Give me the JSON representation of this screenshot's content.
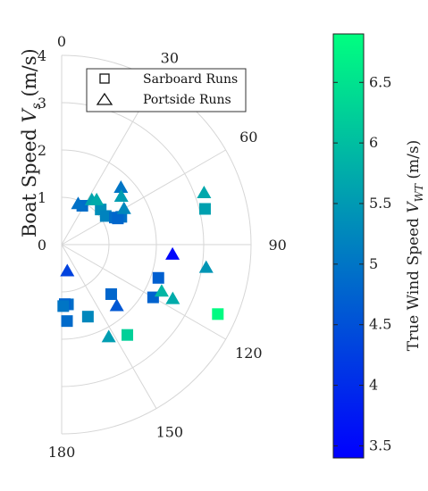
{
  "chart_data": {
    "type": "scatter",
    "coordinate_system": "polar-half",
    "ylabel": "Boat Speed V_s (m/s)",
    "ylabel_parts": {
      "main": "Boat Speed ",
      "var": "V",
      "sub": "s",
      "unit": " (m/s)"
    },
    "radial_range": [
      0,
      4
    ],
    "radial_ticks": [
      0,
      1,
      2,
      3,
      4
    ],
    "radial_tick_labels": [
      "0",
      "1",
      "2",
      "3",
      "4"
    ],
    "angle_range": [
      0,
      180
    ],
    "angle_ticks": [
      0,
      30,
      60,
      90,
      120,
      150,
      180
    ],
    "angle_tick_labels": [
      "0",
      "30",
      "60",
      "90",
      "120",
      "150",
      "180"
    ],
    "grid": true,
    "legend": {
      "placement": "top-center",
      "entries": [
        {
          "label": "Sarboard Runs",
          "marker": "square"
        },
        {
          "label": "Portside Runs",
          "marker": "triangle"
        }
      ]
    },
    "colorbar": {
      "label": "True Wind Speed V_WT (m/s)",
      "label_parts": {
        "main": "True Wind Speed ",
        "var": "V",
        "sub": "WT",
        "unit": " (m/s)"
      },
      "range": [
        3.4,
        6.9
      ],
      "ticks": [
        3.5,
        4,
        4.5,
        5,
        5.5,
        6,
        6.5
      ],
      "tick_labels": [
        "3.5",
        "4",
        "4.5",
        "5",
        "5.5",
        "6",
        "6.5"
      ],
      "colormap": [
        "#0000ff",
        "#00ff80"
      ]
    },
    "series": [
      {
        "name": "Sarboard Runs",
        "marker": "square",
        "points": [
          {
            "angle": 28,
            "r": 0.93,
            "c": 4.9
          },
          {
            "angle": 48,
            "r": 1.11,
            "c": 5.35
          },
          {
            "angle": 57,
            "r": 1.11,
            "c": 5.2
          },
          {
            "angle": 63,
            "r": 1.26,
            "c": 4.9
          },
          {
            "angle": 65,
            "r": 1.39,
            "c": 4.95
          },
          {
            "angle": 65,
            "r": 1.31,
            "c": 4.8
          },
          {
            "angle": 76,
            "r": 3.12,
            "c": 5.6
          },
          {
            "angle": 109,
            "r": 2.16,
            "c": 4.7
          },
          {
            "angle": 120,
            "r": 2.23,
            "c": 4.75
          },
          {
            "angle": 114,
            "r": 3.61,
            "c": 6.85
          },
          {
            "angle": 135,
            "r": 1.48,
            "c": 4.8
          },
          {
            "angle": 144,
            "r": 2.36,
            "c": 6.25
          },
          {
            "angle": 160,
            "r": 1.62,
            "c": 5.25
          },
          {
            "angle": 174,
            "r": 1.27,
            "c": 4.9
          },
          {
            "angle": 177,
            "r": 1.26,
            "c": 4.75
          },
          {
            "angle": 178.5,
            "r": 1.3,
            "c": 5.0
          },
          {
            "angle": 176,
            "r": 1.62,
            "c": 4.85
          }
        ]
      },
      {
        "name": "Portside Runs",
        "marker": "triangle",
        "points": [
          {
            "angle": 22,
            "r": 0.93,
            "c": 4.95
          },
          {
            "angle": 34,
            "r": 1.14,
            "c": 5.65
          },
          {
            "angle": 38,
            "r": 1.2,
            "c": 5.75
          },
          {
            "angle": 46,
            "r": 1.74,
            "c": 5.0
          },
          {
            "angle": 51,
            "r": 1.62,
            "c": 5.55
          },
          {
            "angle": 60,
            "r": 1.52,
            "c": 5.25
          },
          {
            "angle": 70,
            "r": 3.2,
            "c": 5.7
          },
          {
            "angle": 95,
            "r": 2.35,
            "c": 3.5
          },
          {
            "angle": 99,
            "r": 3.09,
            "c": 5.45
          },
          {
            "angle": 115,
            "r": 2.33,
            "c": 5.9
          },
          {
            "angle": 116,
            "r": 2.61,
            "c": 5.75
          },
          {
            "angle": 138,
            "r": 1.74,
            "c": 4.6
          },
          {
            "angle": 153,
            "r": 2.19,
            "c": 5.55
          },
          {
            "angle": 168,
            "r": 0.57,
            "c": 4.3
          }
        ]
      }
    ]
  }
}
